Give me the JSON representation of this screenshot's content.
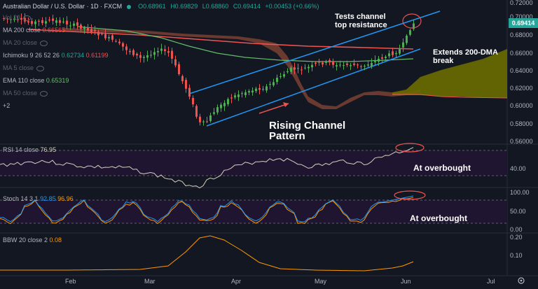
{
  "header": {
    "symbol": "Australian Dollar / U.S. Dollar",
    "interval": "1D",
    "source": "FXCM",
    "open": "O0.68961",
    "high": "H0.69829",
    "low": "L0.68860",
    "close": "C0.69414",
    "change": "+0.00453 (+0.66%)"
  },
  "indicators": [
    {
      "name": "Vol 20",
      "value": "",
      "hidden": true
    },
    {
      "name": "MA 200 close",
      "value": "0.66565",
      "color": "#ef5350",
      "hidden": false
    },
    {
      "name": "MA 20 close",
      "value": "",
      "hidden": true
    },
    {
      "name": "Ichimoku 9 26 52 26",
      "value": "0.62734",
      "value2": "0.61199",
      "color": "#26a69a",
      "color2": "#ef5350",
      "hidden": false
    },
    {
      "name": "MA 5 close",
      "value": "",
      "hidden": true
    },
    {
      "name": "EMA 110 close",
      "value": "0.65319",
      "color": "#66bb6a",
      "hidden": false
    },
    {
      "name": "MA 50 close",
      "value": "",
      "hidden": true
    },
    {
      "name": "+2",
      "value": "",
      "hidden": false
    }
  ],
  "annotations": {
    "tests_resistance": "Tests channel\ntop resistance",
    "extends_dma": "Extends 200-DMA\nbreak",
    "rising_channel": "Rising Channel\nPattern",
    "rsi_overbought": "At overbought",
    "stoch_overbought": "At overbought"
  },
  "price_axis": [
    "0.72000",
    "0.70000",
    "0.68000",
    "0.66000",
    "0.64000",
    "0.62000",
    "0.60000",
    "0.58000",
    "0.56000"
  ],
  "last_price": "0.69414",
  "time_axis": [
    "Feb",
    "Mar",
    "Apr",
    "May",
    "Jun",
    "Jul"
  ],
  "panes": {
    "rsi": {
      "label": "RSI 14 close",
      "value": "76.95",
      "axis": [
        "40.00"
      ]
    },
    "stoch": {
      "label": "Stoch 14 3 1",
      "value": "92.85",
      "value2": "96.96",
      "axis": [
        "100.00",
        "50.00",
        "0.00"
      ]
    },
    "bbw": {
      "label": "BBW 20 close 2",
      "value": "0.08",
      "axis": [
        "0.20",
        "0.10"
      ]
    }
  },
  "colors": {
    "up": "#26a69a",
    "up_candle": "#4caf50",
    "down": "#ef5350",
    "channel": "#2196f3",
    "ma200": "#ef5350",
    "ema110": "#66bb6a",
    "cloud_green": "#808000",
    "cloud_red": "#8d4a3a",
    "rsi_line": "#e0d7c6",
    "stoch_k": "#2196f3",
    "stoch_d": "#ff9800",
    "bbw": "#ff9800",
    "ob_zone": "#2a1a3e"
  }
}
